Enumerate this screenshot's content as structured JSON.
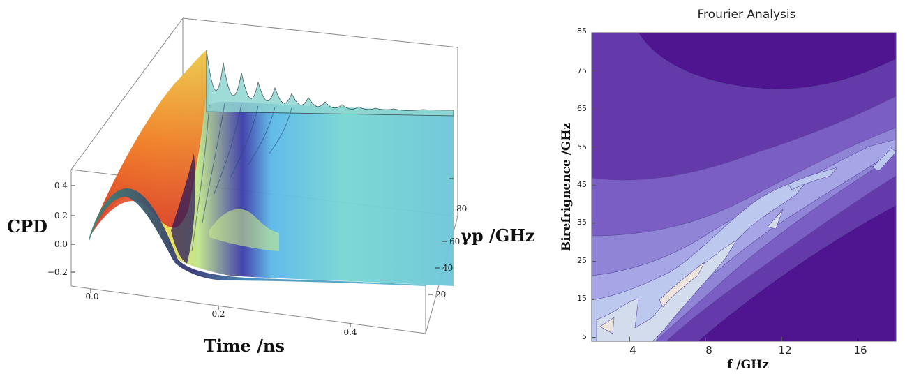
{
  "chart_data": [
    {
      "type": "surface",
      "title": "",
      "xlabel": "Time /ns",
      "ylabel": "γp /GHz",
      "zlabel": "CPD",
      "x_ticks": [
        "0.0",
        "0.2",
        "0.4"
      ],
      "y_ticks": [
        "20",
        "40",
        "60",
        "80"
      ],
      "z_ticks": [
        "0.4",
        "0.2",
        "0.0",
        "−0.2"
      ],
      "x_range": [
        0,
        0.5
      ],
      "y_range": [
        10,
        95
      ],
      "z_range": [
        -0.3,
        0.45
      ],
      "colormap": [
        "#e8352a",
        "#f59a2a",
        "#f5d94a",
        "#bfe58a",
        "#76d6d2",
        "#4aa0e0",
        "#3a3aa8",
        "#2a1a5a"
      ]
    },
    {
      "type": "contour",
      "title": "Frourier Analysis",
      "xlabel": "f /GHz",
      "ylabel": "Birefrignence /GHz",
      "x_ticks": [
        "4",
        "8",
        "12",
        "16"
      ],
      "y_ticks": [
        "5",
        "15",
        "25",
        "35",
        "45",
        "55",
        "65",
        "75",
        "85"
      ],
      "xlim": [
        2,
        18
      ],
      "ylim": [
        4,
        85
      ],
      "levels_colors": [
        "#4f1590",
        "#6439aa",
        "#7a5ec4",
        "#8f84d6",
        "#a6a6e6",
        "#bcc8ee",
        "#d2dcec",
        "#ede4dc"
      ]
    }
  ]
}
